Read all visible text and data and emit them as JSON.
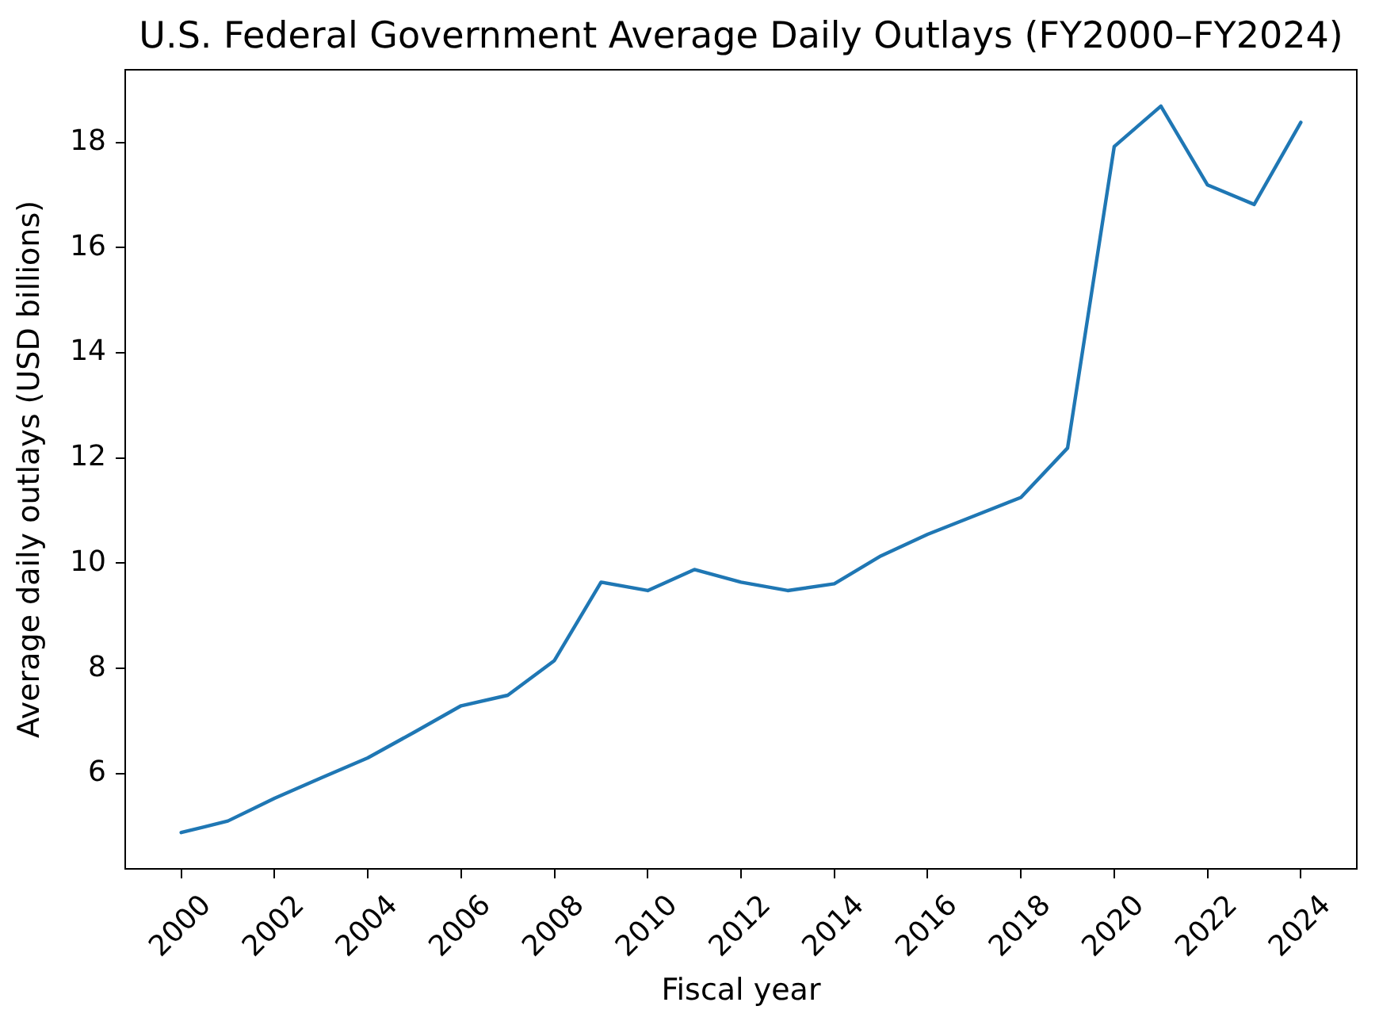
{
  "chart_data": {
    "type": "line",
    "title": "U.S. Federal Government Average Daily Outlays (FY2000–FY2024)",
    "xlabel": "Fiscal year",
    "ylabel": "Average daily outlays (USD billions)",
    "x": [
      2000,
      2001,
      2002,
      2003,
      2004,
      2005,
      2006,
      2007,
      2008,
      2009,
      2010,
      2011,
      2012,
      2013,
      2014,
      2015,
      2016,
      2017,
      2018,
      2019,
      2020,
      2021,
      2022,
      2023,
      2024
    ],
    "series": [
      {
        "color": "#1f77b4",
        "values": [
          4.88,
          5.1,
          5.53,
          5.92,
          6.3,
          6.79,
          7.29,
          7.49,
          8.15,
          9.64,
          9.48,
          9.88,
          9.64,
          9.48,
          9.61,
          10.14,
          10.55,
          10.9,
          11.25,
          12.19,
          17.92,
          18.69,
          17.19,
          16.82,
          18.38
        ]
      }
    ],
    "xlim": [
      1998.8,
      2025.2
    ],
    "xticks": [
      2000,
      2002,
      2004,
      2006,
      2008,
      2010,
      2012,
      2014,
      2016,
      2018,
      2020,
      2022,
      2024
    ],
    "ylim": [
      4.19,
      19.38
    ],
    "yticks": [
      6,
      8,
      10,
      12,
      14,
      16,
      18
    ],
    "line_style": "solid"
  }
}
